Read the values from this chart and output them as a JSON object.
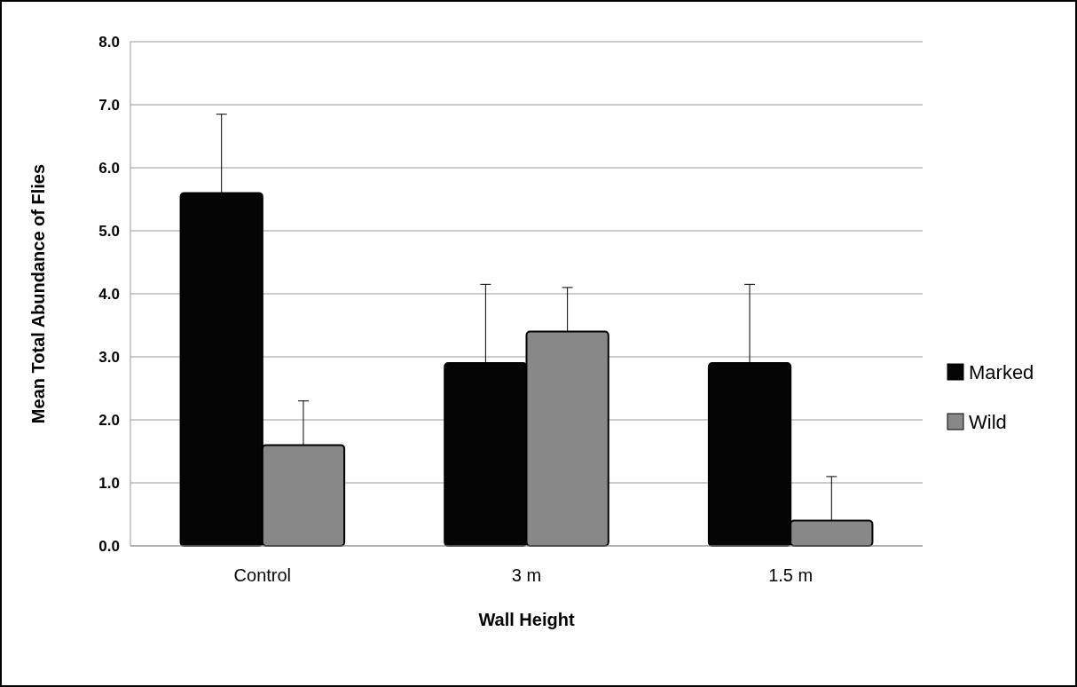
{
  "chart_data": {
    "type": "bar",
    "xlabel": "Wall Height",
    "ylabel": "Mean Total Abundance of Flies",
    "categories": [
      "Control",
      "3 m",
      "1.5 m"
    ],
    "series": [
      {
        "name": "Marked",
        "color": "#050505",
        "values": [
          5.6,
          2.9,
          2.9
        ],
        "errors": [
          [
            5.6,
            6.85
          ],
          [
            2.9,
            4.15
          ],
          [
            2.9,
            4.15
          ]
        ]
      },
      {
        "name": "Wild",
        "color": "#888888",
        "values": [
          1.6,
          3.4,
          0.4
        ],
        "errors": [
          [
            1.6,
            2.3
          ],
          [
            3.4,
            4.1
          ],
          [
            0.4,
            1.1
          ]
        ]
      }
    ],
    "ylim": [
      0,
      8
    ],
    "yticks": [
      {
        "value": 0,
        "label": "0.0"
      },
      {
        "value": 1,
        "label": "1.0"
      },
      {
        "value": 2,
        "label": "2.0"
      },
      {
        "value": 3,
        "label": "3.0"
      },
      {
        "value": 4,
        "label": "4.0"
      },
      {
        "value": 5,
        "label": "5.0"
      },
      {
        "value": 6,
        "label": "6.0"
      },
      {
        "value": 7,
        "label": "7.0"
      },
      {
        "value": 8,
        "label": "8.0"
      }
    ],
    "grid": "y",
    "legend": "right"
  }
}
